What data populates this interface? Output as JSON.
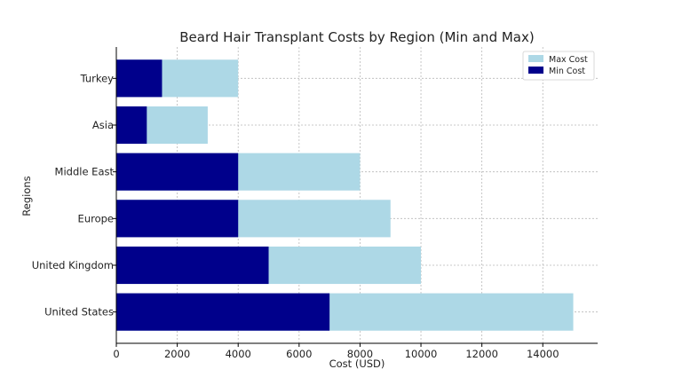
{
  "chart_data": {
    "type": "bar",
    "orientation": "horizontal",
    "stacked": false,
    "title": "Beard Hair Transplant Costs by Region (Min and Max)",
    "xlabel": "Cost (USD)",
    "ylabel": "Regions",
    "categories": [
      "United States",
      "United Kingdom",
      "Europe",
      "Middle East",
      "Asia",
      "Turkey"
    ],
    "series": [
      {
        "name": "Max Cost",
        "color": "#add8e6",
        "values": [
          15000,
          10000,
          9000,
          8000,
          3000,
          4000
        ]
      },
      {
        "name": "Min Cost",
        "color": "#00008b",
        "values": [
          7000,
          5000,
          4000,
          4000,
          1000,
          1500
        ]
      }
    ],
    "xlim": [
      0,
      15800
    ],
    "xticks": [
      0,
      2000,
      4000,
      6000,
      8000,
      10000,
      12000,
      14000
    ],
    "grid": true,
    "legend_position": "top-right"
  }
}
